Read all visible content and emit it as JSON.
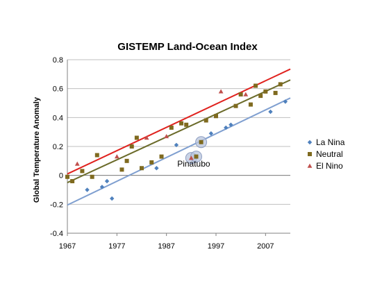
{
  "chart_data": {
    "type": "scatter",
    "title": "GISTEMP Land-Ocean Index",
    "xlabel": "",
    "ylabel": "Global Temperature Anomaly",
    "xlim": [
      1967,
      2012
    ],
    "ylim": [
      -0.4,
      0.8
    ],
    "x_ticks": [
      "1967",
      "1977",
      "1987",
      "1997",
      "2007"
    ],
    "y_ticks": [
      "-0.4",
      "-0.2",
      "0",
      "0.2",
      "0.4",
      "0.6",
      "0.8"
    ],
    "grid": "horizontal",
    "legend_position": "right",
    "series": [
      {
        "name": "La Nina",
        "marker": "diamond",
        "color": "#4f81bd",
        "points": [
          [
            1971,
            -0.1
          ],
          [
            1974,
            -0.08
          ],
          [
            1975,
            -0.04
          ],
          [
            1976,
            -0.16
          ],
          [
            1985,
            0.05
          ],
          [
            1989,
            0.21
          ],
          [
            1996,
            0.29
          ],
          [
            1999,
            0.33
          ],
          [
            2000,
            0.35
          ],
          [
            2008,
            0.44
          ],
          [
            2011,
            0.51
          ]
        ]
      },
      {
        "name": "Neutral",
        "marker": "square",
        "color": "#7f6a1f",
        "points": [
          [
            1967,
            -0.01
          ],
          [
            1968,
            -0.04
          ],
          [
            1970,
            0.03
          ],
          [
            1972,
            -0.01
          ],
          [
            1973,
            0.14
          ],
          [
            1978,
            0.04
          ],
          [
            1979,
            0.1
          ],
          [
            1980,
            0.2
          ],
          [
            1981,
            0.26
          ],
          [
            1982,
            0.05
          ],
          [
            1984,
            0.09
          ],
          [
            1986,
            0.13
          ],
          [
            1988,
            0.33
          ],
          [
            1990,
            0.36
          ],
          [
            1991,
            0.35
          ],
          [
            1993,
            0.13
          ],
          [
            1994,
            0.23
          ],
          [
            1995,
            0.38
          ],
          [
            1997,
            0.41
          ],
          [
            2001,
            0.48
          ],
          [
            2002,
            0.56
          ],
          [
            2004,
            0.49
          ],
          [
            2005,
            0.62
          ],
          [
            2006,
            0.55
          ],
          [
            2007,
            0.58
          ],
          [
            2009,
            0.57
          ],
          [
            2010,
            0.63
          ]
        ]
      },
      {
        "name": "El Nino",
        "marker": "triangle",
        "color": "#c0504d",
        "points": [
          [
            1969,
            0.08
          ],
          [
            1977,
            0.13
          ],
          [
            1983,
            0.26
          ],
          [
            1987,
            0.27
          ],
          [
            1992,
            0.12
          ],
          [
            1998,
            0.58
          ],
          [
            2003,
            0.56
          ]
        ]
      }
    ],
    "trendlines": [
      {
        "series": "La Nina",
        "color": "#7f9fd0",
        "from": [
          1967,
          -0.205
        ],
        "to": [
          2012,
          0.535
        ]
      },
      {
        "series": "Neutral",
        "color": "#6b6b2a",
        "from": [
          1967,
          -0.05
        ],
        "to": [
          2012,
          0.66
        ]
      },
      {
        "series": "El Nino",
        "color": "#e0221e",
        "from": [
          1967,
          0.01
        ],
        "to": [
          2012,
          0.735
        ]
      }
    ],
    "highlights": [
      [
        1992,
        0.12
      ],
      [
        1993,
        0.13
      ],
      [
        1994,
        0.23
      ]
    ],
    "annotations": [
      {
        "text": "Pinatubo",
        "x": 1992.5,
        "y": 0.06
      }
    ]
  }
}
